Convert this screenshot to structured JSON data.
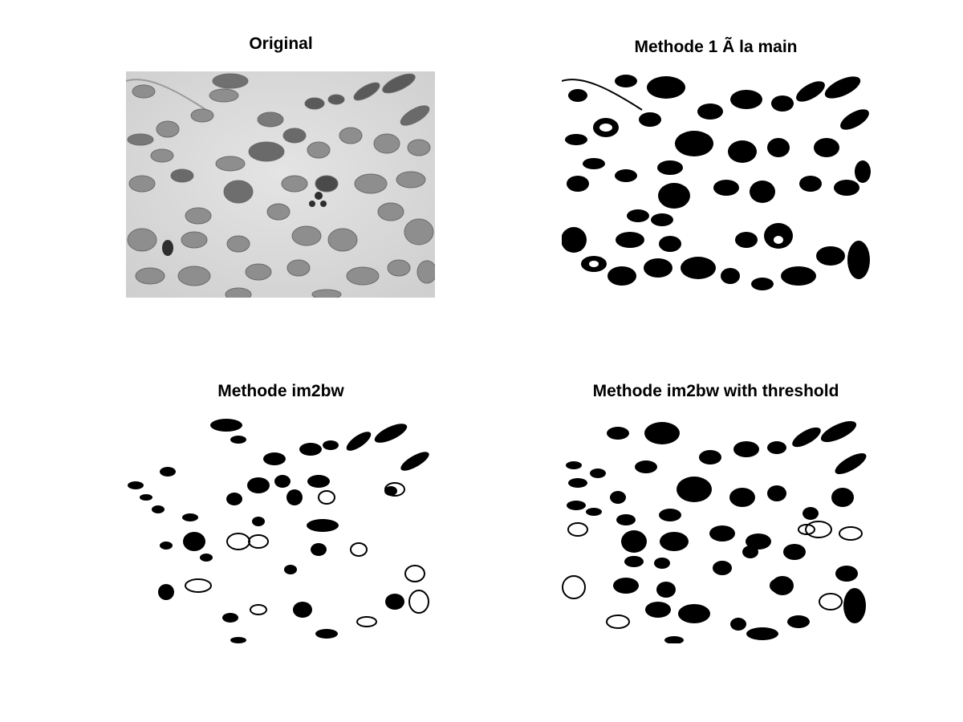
{
  "panels": [
    {
      "title": "Original",
      "icon": "grayscale-cell-image"
    },
    {
      "title": "Methode 1 Ã  la main",
      "icon": "binary-mask-image"
    },
    {
      "title": "Methode im2bw",
      "icon": "binary-mask-image"
    },
    {
      "title": "Methode im2bw with threshold",
      "icon": "binary-mask-image"
    }
  ],
  "colors": {
    "background": "#ffffff",
    "original_bg": "#d9d9d9",
    "cell_fill": "#8a8a8a",
    "nucleus_dark": "#3a3a3a",
    "mask_fg": "#000000",
    "mask_bg": "#ffffff"
  }
}
